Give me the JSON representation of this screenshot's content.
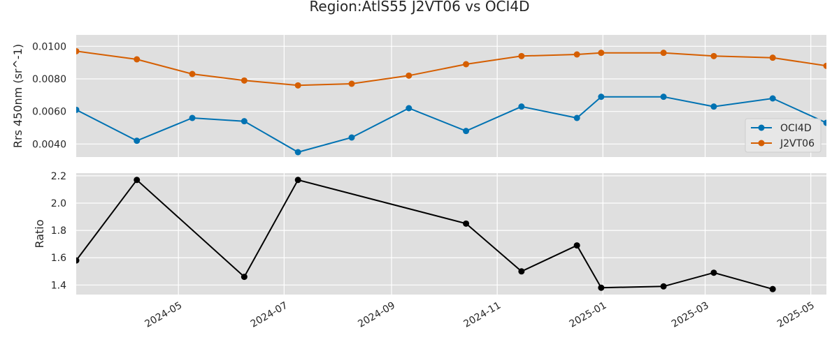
{
  "chart_data": {
    "title": "Region:AtlS55 J2VT06 vs OCI4D",
    "x_ticks": [
      "2024-05",
      "2024-07",
      "2024-09",
      "2024-11",
      "2025-01",
      "2025-03",
      "2025-05"
    ],
    "panels": [
      {
        "type": "line",
        "ylabel": "Rrs 450nm (sr^-1)",
        "ylim": [
          0.0032,
          0.0107
        ],
        "y_ticks": [
          "0.0040",
          "0.0060",
          "0.0080",
          "0.0100"
        ],
        "legend_position": "right",
        "series": [
          {
            "name": "OCI4D",
            "color": "#0072B2",
            "points": [
              {
                "x": "2024-03-03",
                "y": 0.0061
              },
              {
                "x": "2024-04-07",
                "y": 0.0042
              },
              {
                "x": "2024-05-09",
                "y": 0.0056
              },
              {
                "x": "2024-06-08",
                "y": 0.0054
              },
              {
                "x": "2024-07-09",
                "y": 0.0035
              },
              {
                "x": "2024-08-09",
                "y": 0.0044
              },
              {
                "x": "2024-09-11",
                "y": 0.0062
              },
              {
                "x": "2024-10-14",
                "y": 0.0048
              },
              {
                "x": "2024-11-15",
                "y": 0.0063
              },
              {
                "x": "2024-12-17",
                "y": 0.0056
              },
              {
                "x": "2024-12-31",
                "y": 0.0069
              },
              {
                "x": "2025-02-05",
                "y": 0.0069
              },
              {
                "x": "2025-03-06",
                "y": 0.0063
              },
              {
                "x": "2025-04-09",
                "y": 0.0068
              },
              {
                "x": "2025-05-10",
                "y": 0.0053
              }
            ]
          },
          {
            "name": "J2VT06",
            "color": "#D55E00",
            "points": [
              {
                "x": "2024-03-03",
                "y": 0.0097
              },
              {
                "x": "2024-04-07",
                "y": 0.0092
              },
              {
                "x": "2024-05-09",
                "y": 0.0083
              },
              {
                "x": "2024-06-08",
                "y": 0.0079
              },
              {
                "x": "2024-07-09",
                "y": 0.0076
              },
              {
                "x": "2024-08-09",
                "y": 0.0077
              },
              {
                "x": "2024-09-11",
                "y": 0.0082
              },
              {
                "x": "2024-10-14",
                "y": 0.0089
              },
              {
                "x": "2024-11-15",
                "y": 0.0094
              },
              {
                "x": "2024-12-17",
                "y": 0.0095
              },
              {
                "x": "2024-12-31",
                "y": 0.0096
              },
              {
                "x": "2025-02-05",
                "y": 0.0096
              },
              {
                "x": "2025-03-06",
                "y": 0.0094
              },
              {
                "x": "2025-04-09",
                "y": 0.0093
              },
              {
                "x": "2025-05-10",
                "y": 0.0088
              }
            ]
          }
        ]
      },
      {
        "type": "line",
        "ylabel": "Ratio",
        "ylim": [
          1.33,
          2.22
        ],
        "y_ticks": [
          "1.4",
          "1.6",
          "1.8",
          "2.0",
          "2.2"
        ],
        "series": [
          {
            "color": "#000000",
            "points": [
              {
                "x": "2024-03-03",
                "y": 1.58
              },
              {
                "x": "2024-04-07",
                "y": 2.17
              },
              {
                "x": "2024-06-08",
                "y": 1.46
              },
              {
                "x": "2024-07-09",
                "y": 2.17
              },
              {
                "x": "2024-10-14",
                "y": 1.85
              },
              {
                "x": "2024-11-15",
                "y": 1.5
              },
              {
                "x": "2024-12-17",
                "y": 1.69
              },
              {
                "x": "2024-12-31",
                "y": 1.38
              },
              {
                "x": "2025-02-05",
                "y": 1.39
              },
              {
                "x": "2025-03-06",
                "y": 1.49
              },
              {
                "x": "2025-04-09",
                "y": 1.37
              }
            ]
          }
        ]
      }
    ],
    "xlim": [
      "2024-03-03",
      "2025-05-10"
    ],
    "grid": true,
    "background": "#dfdfdf",
    "grid_color": "#ffffff"
  }
}
